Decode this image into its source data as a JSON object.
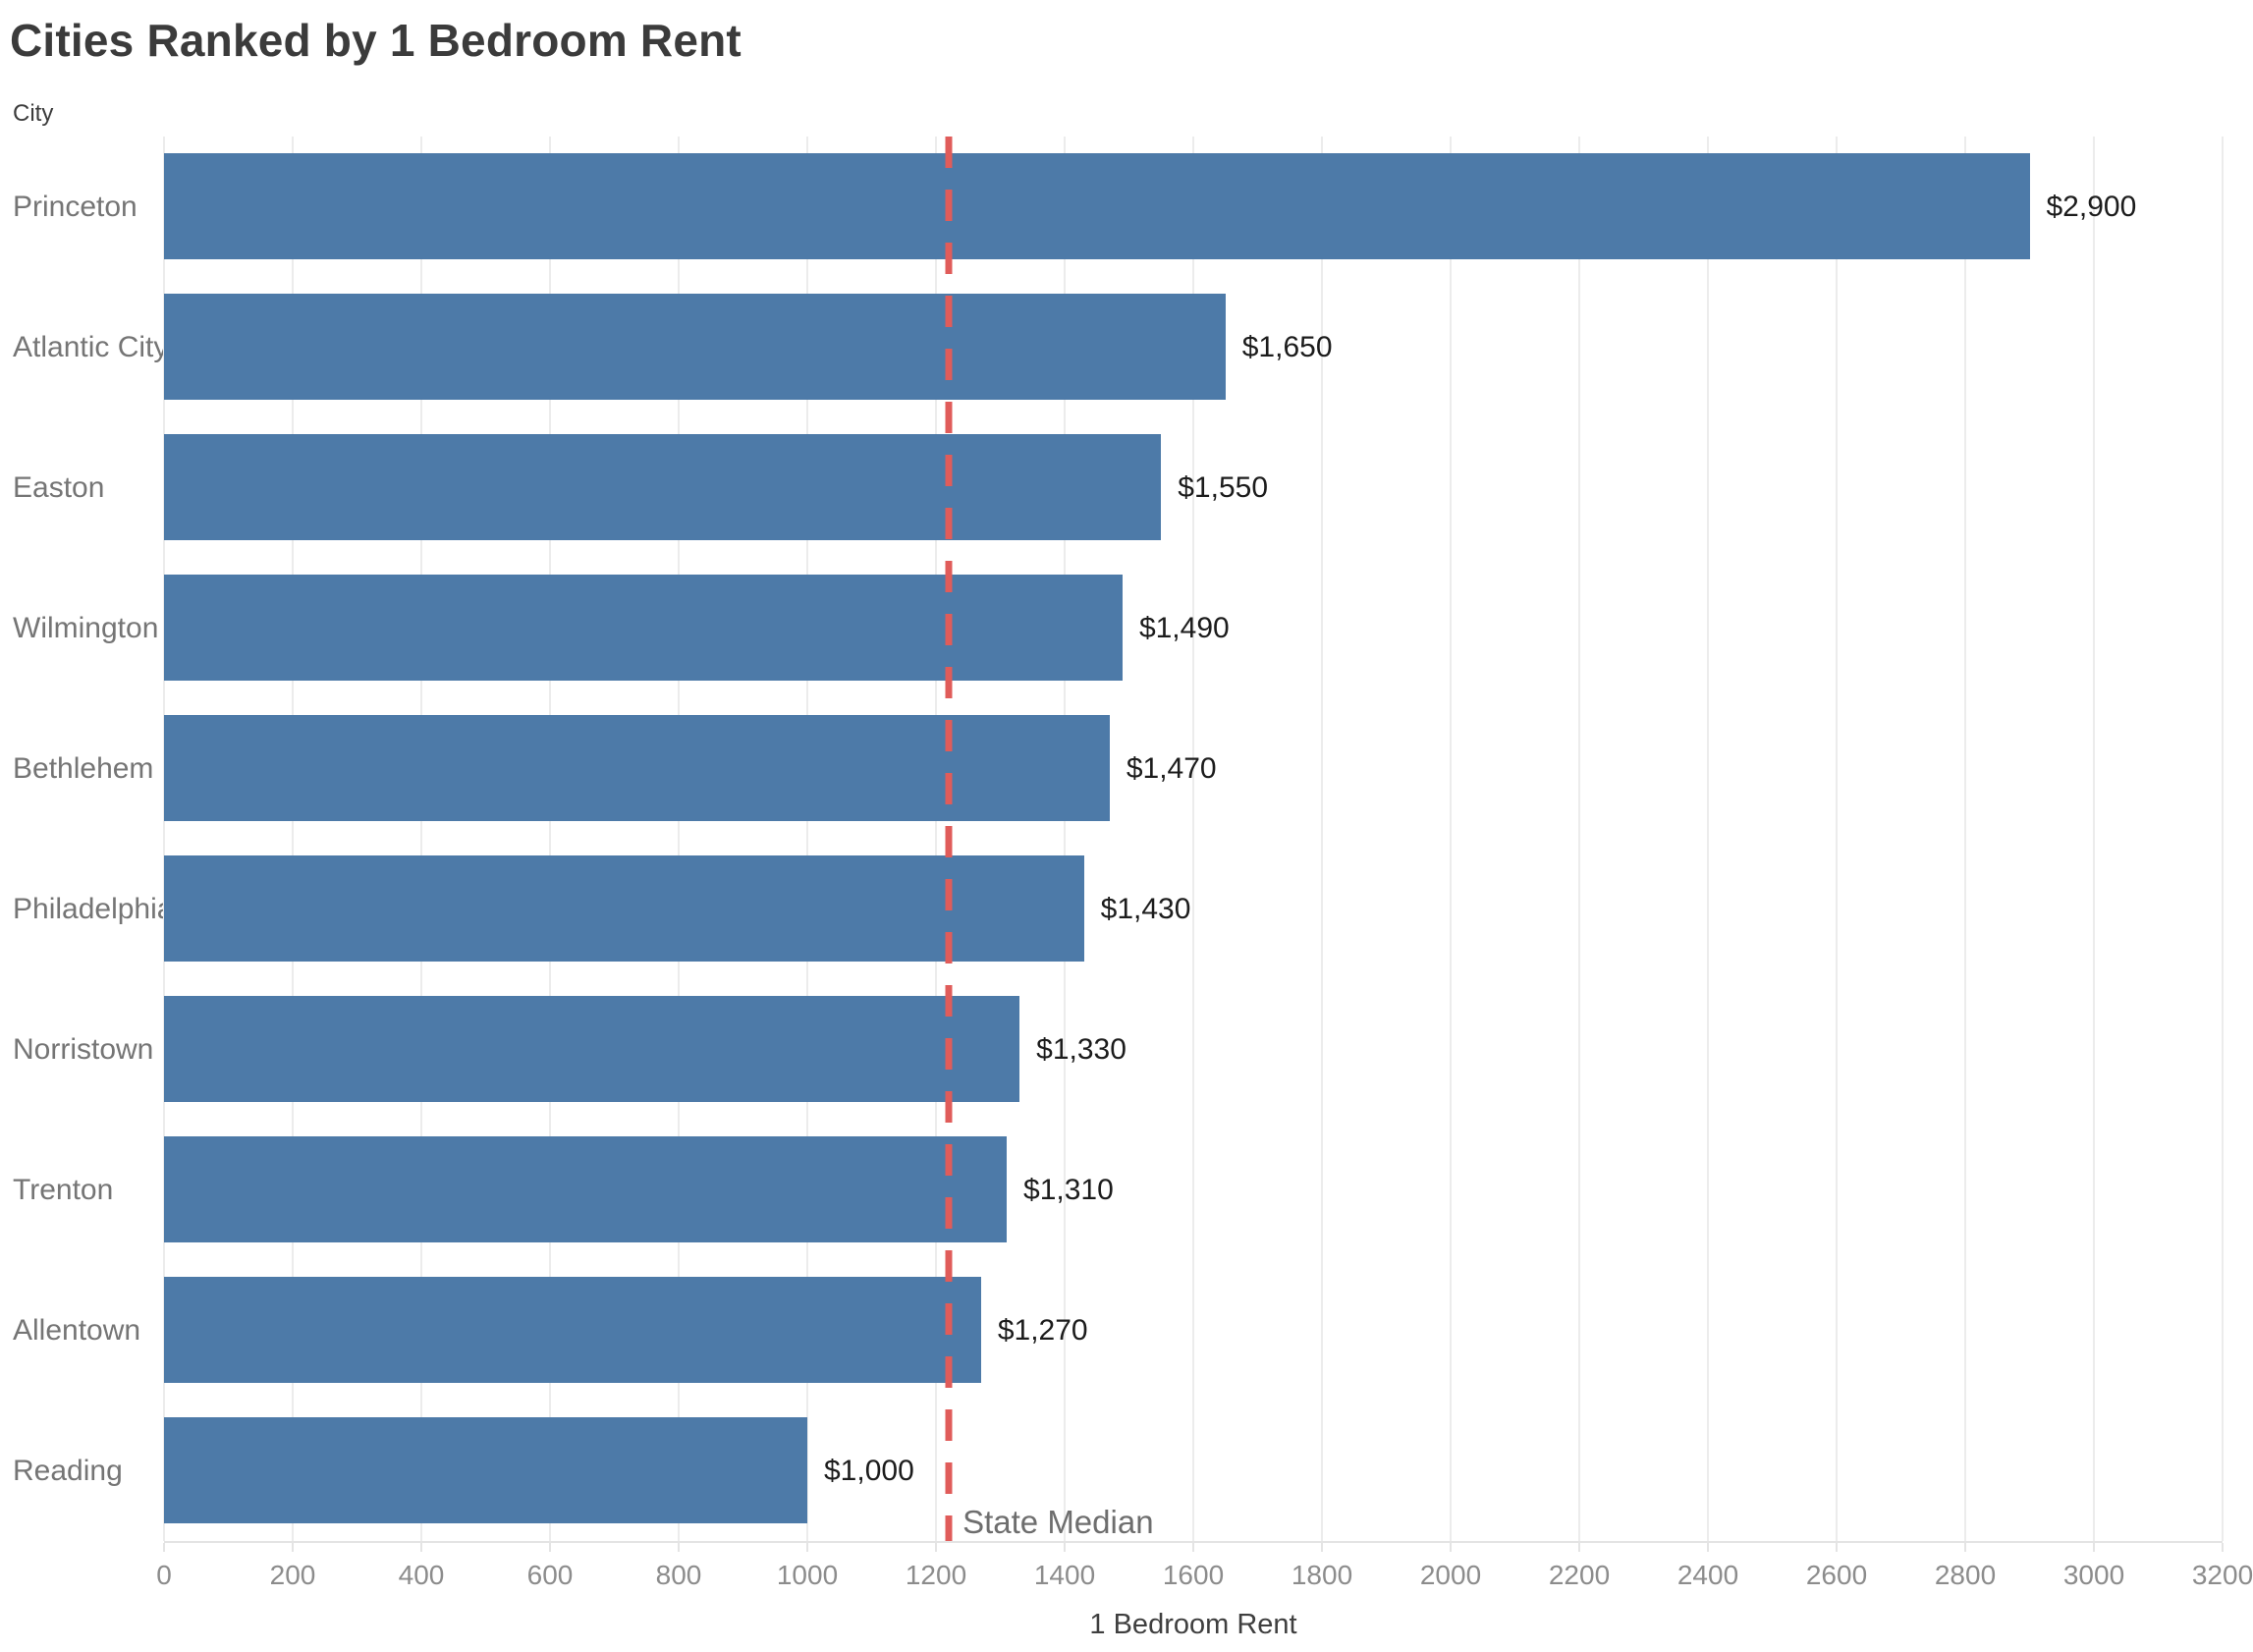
{
  "title": "Cities Ranked by 1 Bedroom Rent",
  "chart_data": {
    "type": "bar",
    "orientation": "horizontal",
    "title": "Cities Ranked by 1 Bedroom Rent",
    "ylabel": "City",
    "xlabel": "1 Bedroom Rent",
    "categories": [
      "Princeton",
      "Atlantic City",
      "Easton",
      "Wilmington",
      "Bethlehem",
      "Philadelphia",
      "Norristown",
      "Trenton",
      "Allentown",
      "Reading"
    ],
    "values": [
      2900,
      1650,
      1550,
      1490,
      1470,
      1430,
      1330,
      1310,
      1270,
      1000
    ],
    "value_labels": [
      "$2,900",
      "$1,650",
      "$1,550",
      "$1,490",
      "$1,470",
      "$1,430",
      "$1,330",
      "$1,310",
      "$1,270",
      "$1,000"
    ],
    "xlim": [
      0,
      3200
    ],
    "xticks": [
      0,
      200,
      400,
      600,
      800,
      1000,
      1200,
      1400,
      1600,
      1800,
      2000,
      2200,
      2400,
      2600,
      2800,
      3000,
      3200
    ],
    "grid": true,
    "legend": "none",
    "bar_color": "#4d7aa8",
    "reference_line": {
      "value": 1220,
      "label": "State Median",
      "color": "#e05c5a",
      "style": "dashed"
    }
  }
}
